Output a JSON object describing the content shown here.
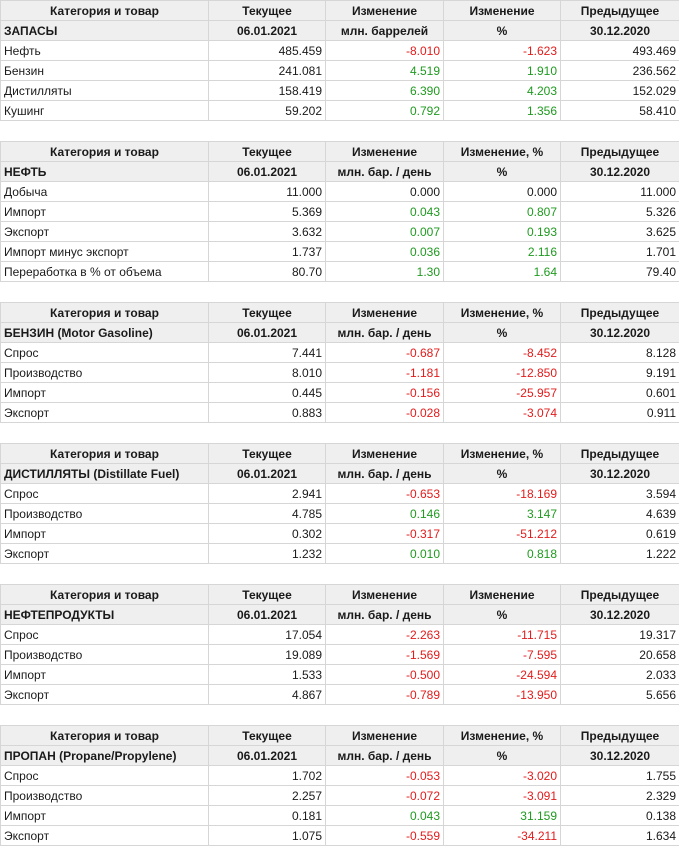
{
  "headers": {
    "category": "Категория и товар",
    "current": "Текущее",
    "previous": "Предыдущее",
    "current_date": "06.01.2021",
    "previous_date": "30.12.2020",
    "pct_sign": "%"
  },
  "colors": {
    "negative": "#e31b1b",
    "positive": "#1f9a1f",
    "header_bg": "#efefef",
    "grid": "#d6d6d6"
  },
  "sections": [
    {
      "title": "ЗАПАСЫ",
      "change_label": "Изменение",
      "change_unit": "млн. баррелей",
      "pct_label": "Изменение",
      "rows": [
        {
          "name": "Нефть",
          "current": "485.459",
          "change": "-8.010",
          "pct": "-1.623",
          "previous": "493.469"
        },
        {
          "name": "Бензин",
          "current": "241.081",
          "change": "4.519",
          "pct": "1.910",
          "previous": "236.562"
        },
        {
          "name": "Дистилляты",
          "current": "158.419",
          "change": "6.390",
          "pct": "4.203",
          "previous": "152.029"
        },
        {
          "name": "Кушинг",
          "current": "59.202",
          "change": "0.792",
          "pct": "1.356",
          "previous": "58.410"
        }
      ]
    },
    {
      "title": "НЕФТЬ",
      "change_label": "Изменение",
      "change_unit": "млн. бар. / день",
      "pct_label": "Изменение, %",
      "rows": [
        {
          "name": "Добыча",
          "current": "11.000",
          "change": "0.000",
          "pct": "0.000",
          "previous": "11.000"
        },
        {
          "name": "Импорт",
          "current": "5.369",
          "change": "0.043",
          "pct": "0.807",
          "previous": "5.326"
        },
        {
          "name": "Экспорт",
          "current": "3.632",
          "change": "0.007",
          "pct": "0.193",
          "previous": "3.625"
        },
        {
          "name": "Импорт минус экспорт",
          "current": "1.737",
          "change": "0.036",
          "pct": "2.116",
          "previous": "1.701"
        },
        {
          "name": "Переработка в % от объема",
          "current": "80.70",
          "change": "1.30",
          "pct": "1.64",
          "previous": "79.40"
        }
      ]
    },
    {
      "title": "БЕНЗИН (Motor Gasoline)",
      "change_label": "Изменение",
      "change_unit": "млн. бар. / день",
      "pct_label": "Изменение, %",
      "rows": [
        {
          "name": "Спрос",
          "current": "7.441",
          "change": "-0.687",
          "pct": "-8.452",
          "previous": "8.128"
        },
        {
          "name": "Производство",
          "current": "8.010",
          "change": "-1.181",
          "pct": "-12.850",
          "previous": "9.191"
        },
        {
          "name": "Импорт",
          "current": "0.445",
          "change": "-0.156",
          "pct": "-25.957",
          "previous": "0.601"
        },
        {
          "name": "Экспорт",
          "current": "0.883",
          "change": "-0.028",
          "pct": "-3.074",
          "previous": "0.911"
        }
      ]
    },
    {
      "title": "ДИСТИЛЛЯТЫ (Distillate Fuel)",
      "change_label": "Изменение",
      "change_unit": "млн. бар. / день",
      "pct_label": "Изменение, %",
      "rows": [
        {
          "name": "Спрос",
          "current": "2.941",
          "change": "-0.653",
          "pct": "-18.169",
          "previous": "3.594"
        },
        {
          "name": "Производство",
          "current": "4.785",
          "change": "0.146",
          "pct": "3.147",
          "previous": "4.639"
        },
        {
          "name": "Импорт",
          "current": "0.302",
          "change": "-0.317",
          "pct": "-51.212",
          "previous": "0.619"
        },
        {
          "name": "Экспорт",
          "current": "1.232",
          "change": "0.010",
          "pct": "0.818",
          "previous": "1.222"
        }
      ]
    },
    {
      "title": "НЕФТЕПРОДУКТЫ",
      "change_label": "Изменение",
      "change_unit": "млн. бар. / день",
      "pct_label": "Изменение",
      "rows": [
        {
          "name": "Спрос",
          "current": "17.054",
          "change": "-2.263",
          "pct": "-11.715",
          "previous": "19.317"
        },
        {
          "name": "Производство",
          "current": "19.089",
          "change": "-1.569",
          "pct": "-7.595",
          "previous": "20.658"
        },
        {
          "name": "Импорт",
          "current": "1.533",
          "change": "-0.500",
          "pct": "-24.594",
          "previous": "2.033"
        },
        {
          "name": "Экспорт",
          "current": "4.867",
          "change": "-0.789",
          "pct": "-13.950",
          "previous": "5.656"
        }
      ]
    },
    {
      "title": "ПРОПАН (Propane/Propylene)",
      "change_label": "Изменение",
      "change_unit": "млн. бар. / день",
      "pct_label": "Изменение, %",
      "rows": [
        {
          "name": "Спрос",
          "current": "1.702",
          "change": "-0.053",
          "pct": "-3.020",
          "previous": "1.755"
        },
        {
          "name": "Производство",
          "current": "2.257",
          "change": "-0.072",
          "pct": "-3.091",
          "previous": "2.329"
        },
        {
          "name": "Импорт",
          "current": "0.181",
          "change": "0.043",
          "pct": "31.159",
          "previous": "0.138"
        },
        {
          "name": "Экспорт",
          "current": "1.075",
          "change": "-0.559",
          "pct": "-34.211",
          "previous": "1.634"
        }
      ]
    }
  ]
}
